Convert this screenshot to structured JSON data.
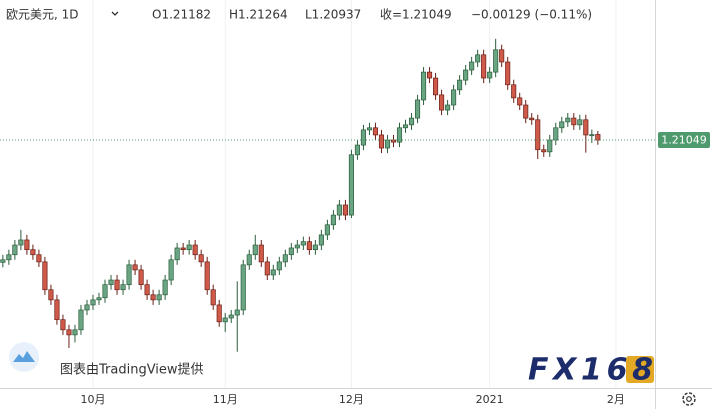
{
  "chart_data": {
    "type": "candlestick",
    "symbol": "欧元美元, 1D",
    "ohlc_labels": [
      "O1.21182",
      "H1.21264",
      "L1.20937",
      "收=1.21049",
      "−0.00129 (−0.11%)"
    ],
    "last_price": 1.21049,
    "watermark": "图表由TradingView提供",
    "logo": "FX168",
    "up_color": "#6aa583",
    "up_border": "#2b5e3c",
    "down_color": "#d05a4a",
    "down_border": "#6a1f16",
    "price_line_color": "#4f9a6c",
    "grid": true,
    "ylim": [
      1.1517,
      1.2437
    ],
    "categories": [
      null,
      null,
      null,
      null,
      null,
      null,
      null,
      null,
      null,
      null,
      null,
      null,
      null,
      null,
      null,
      "10月",
      null,
      null,
      null,
      null,
      null,
      null,
      null,
      null,
      null,
      null,
      null,
      null,
      null,
      null,
      null,
      null,
      null,
      null,
      null,
      null,
      null,
      "11月",
      null,
      null,
      null,
      null,
      null,
      null,
      null,
      null,
      null,
      null,
      null,
      null,
      null,
      null,
      null,
      null,
      null,
      null,
      null,
      null,
      "12月",
      null,
      null,
      null,
      null,
      null,
      null,
      null,
      null,
      null,
      null,
      null,
      null,
      null,
      null,
      null,
      null,
      null,
      null,
      null,
      null,
      null,
      null,
      "2021",
      null,
      null,
      null,
      null,
      null,
      null,
      null,
      null,
      null,
      null,
      null,
      null,
      null,
      null,
      null,
      null,
      null,
      null,
      null,
      null,
      "2月"
    ],
    "open": [
      1.1815,
      1.1821,
      1.1833,
      1.1856,
      1.1868,
      1.1845,
      1.1833,
      1.1816,
      1.175,
      1.1726,
      1.1679,
      1.1655,
      1.1643,
      1.1655,
      1.1702,
      1.1714,
      1.1726,
      1.1731,
      1.1762,
      1.1773,
      1.175,
      1.1762,
      1.1809,
      1.1797,
      1.1762,
      1.1738,
      1.1726,
      1.1738,
      1.1773,
      1.1821,
      1.1849,
      1.1845,
      1.1856,
      1.1833,
      1.1816,
      1.175,
      1.1714,
      1.1674,
      1.1683,
      1.169,
      1.1702,
      1.1809,
      1.1833,
      1.1856,
      1.1816,
      1.1785,
      1.1797,
      1.1816,
      1.1833,
      1.1849,
      1.1856,
      1.1864,
      1.1845,
      1.1856,
      1.188,
      1.1904,
      1.1927,
      1.1951,
      1.1927,
      1.207,
      1.2093,
      1.2129,
      1.2134,
      1.2117,
      1.2086,
      1.2105,
      1.21,
      1.2134,
      1.2141,
      1.2157,
      1.22,
      1.2266,
      1.2252,
      1.2212,
      1.2176,
      1.2188,
      1.2224,
      1.2247,
      1.2271,
      1.229,
      1.2307,
      1.2252,
      1.2266,
      1.2319,
      1.229,
      1.2236,
      1.2205,
      1.2188,
      1.2157,
      1.2153,
      1.2082,
      1.2077,
      1.2105,
      1.2134,
      1.2148,
      1.2157,
      1.2141,
      1.2153,
      1.2117,
      1.21182,
      null,
      null,
      null
    ],
    "high": [
      1.1833,
      1.1845,
      1.1868,
      1.1892,
      1.188,
      1.1857,
      1.1845,
      1.1828,
      1.1762,
      1.1738,
      1.1691,
      1.1667,
      1.1667,
      1.1714,
      1.1726,
      1.1738,
      1.1743,
      1.1774,
      1.1785,
      1.1785,
      1.1774,
      1.1821,
      1.1821,
      1.1809,
      1.1774,
      1.175,
      1.175,
      1.1785,
      1.1833,
      1.1861,
      1.1861,
      1.1868,
      1.1868,
      1.1845,
      1.1828,
      1.1762,
      1.1726,
      1.1695,
      1.1702,
      1.177,
      1.1821,
      1.1845,
      1.188,
      1.1868,
      1.1828,
      1.1809,
      1.1828,
      1.1845,
      1.1861,
      1.1868,
      1.1876,
      1.1876,
      1.1868,
      1.1892,
      1.1916,
      1.1939,
      1.1963,
      1.1963,
      1.2082,
      1.2105,
      1.2141,
      1.2146,
      1.2146,
      1.2129,
      1.2117,
      1.2117,
      1.2146,
      1.2153,
      1.2169,
      1.2212,
      1.2278,
      1.2278,
      1.2264,
      1.2224,
      1.22,
      1.2236,
      1.2259,
      1.2283,
      1.2302,
      1.2319,
      1.2319,
      1.2278,
      1.2345,
      1.2331,
      1.2302,
      1.2248,
      1.2217,
      1.22,
      1.2169,
      1.2165,
      1.2094,
      1.2117,
      1.2146,
      1.216,
      1.2169,
      1.2169,
      1.2165,
      1.2165,
      1.213,
      1.21264,
      null,
      null,
      null
    ],
    "low": [
      1.1803,
      1.1809,
      1.1821,
      1.1844,
      1.1833,
      1.1821,
      1.1804,
      1.1738,
      1.1714,
      1.1667,
      1.1643,
      1.1612,
      1.1625,
      1.1643,
      1.169,
      1.1702,
      1.1714,
      1.1719,
      1.175,
      1.1738,
      1.1738,
      1.175,
      1.1785,
      1.175,
      1.1726,
      1.1714,
      1.1714,
      1.1726,
      1.1761,
      1.1809,
      1.1833,
      1.1833,
      1.1821,
      1.1804,
      1.1738,
      1.1702,
      1.1662,
      1.165,
      1.1671,
      1.1603,
      1.169,
      1.1797,
      1.1821,
      1.1804,
      1.1773,
      1.1773,
      1.1785,
      1.1804,
      1.1821,
      1.1837,
      1.1844,
      1.1833,
      1.1833,
      1.1844,
      1.1868,
      1.1892,
      1.1915,
      1.1915,
      1.192,
      1.2058,
      1.2081,
      1.2117,
      1.2105,
      1.2074,
      1.2074,
      1.2088,
      1.2088,
      1.2122,
      1.2129,
      1.2145,
      1.2188,
      1.224,
      1.22,
      1.2164,
      1.2164,
      1.2176,
      1.2212,
      1.2235,
      1.2259,
      1.2278,
      1.224,
      1.224,
      1.2254,
      1.2278,
      1.2224,
      1.2193,
      1.2176,
      1.2145,
      1.2141,
      1.206,
      1.2065,
      1.2065,
      1.2093,
      1.2122,
      1.2136,
      1.2129,
      1.2129,
      1.2075,
      1.2098,
      1.20937,
      null,
      null,
      null
    ],
    "close": [
      1.1821,
      1.1833,
      1.1856,
      1.1868,
      1.1845,
      1.1833,
      1.1816,
      1.175,
      1.1726,
      1.1679,
      1.1655,
      1.1643,
      1.1655,
      1.1702,
      1.1714,
      1.1726,
      1.1731,
      1.1762,
      1.1773,
      1.175,
      1.1762,
      1.1809,
      1.1797,
      1.1762,
      1.1738,
      1.1726,
      1.1738,
      1.1773,
      1.1821,
      1.1849,
      1.1845,
      1.1856,
      1.1833,
      1.1816,
      1.175,
      1.1714,
      1.1674,
      1.1683,
      1.169,
      1.1702,
      1.1809,
      1.1833,
      1.1856,
      1.1816,
      1.1785,
      1.1797,
      1.1816,
      1.1833,
      1.1849,
      1.1856,
      1.1864,
      1.1845,
      1.1856,
      1.188,
      1.1904,
      1.1927,
      1.1951,
      1.1927,
      1.207,
      1.2093,
      1.2129,
      1.2134,
      1.2117,
      1.2086,
      1.2105,
      1.21,
      1.2134,
      1.2141,
      1.2157,
      1.22,
      1.2266,
      1.2252,
      1.2212,
      1.2176,
      1.2188,
      1.2224,
      1.2247,
      1.2271,
      1.229,
      1.2307,
      1.2252,
      1.2266,
      1.2319,
      1.229,
      1.2236,
      1.2205,
      1.2188,
      1.2157,
      1.2153,
      1.2082,
      1.2077,
      1.2105,
      1.2134,
      1.2148,
      1.2157,
      1.2141,
      1.2153,
      1.2117,
      1.21178,
      1.21049,
      null,
      null,
      null
    ]
  }
}
